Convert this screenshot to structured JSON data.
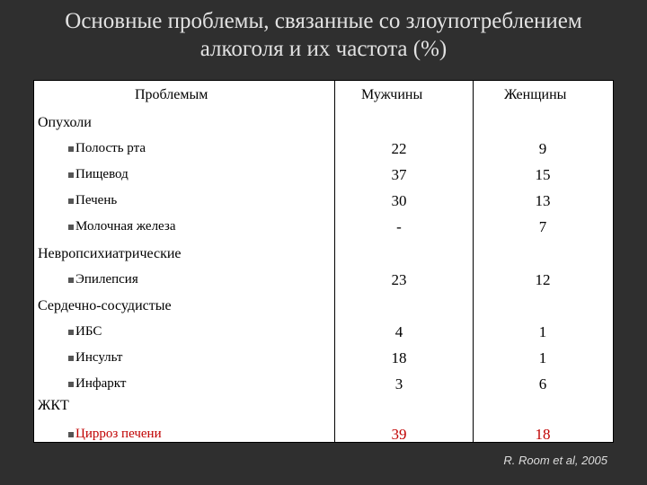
{
  "title": {
    "line1": "Основные проблемы, связанные со злоупотреблением",
    "line2": "алкоголя и их частота (%)"
  },
  "table": {
    "headers": {
      "problems": "Проблемым",
      "men": "Мужчины",
      "women": "Женщины"
    },
    "categories": [
      {
        "label": "Опухоли",
        "rows": [
          {
            "name": "Полость рта",
            "men": "22",
            "women": "9"
          },
          {
            "name": "Пищевод",
            "men": "37",
            "women": "15"
          },
          {
            "name": "Печень",
            "men": "30",
            "women": "13"
          },
          {
            "name": "Молочная железа",
            "men": "-",
            "women": "7"
          }
        ]
      },
      {
        "label": "Невропсихиатрические",
        "rows": [
          {
            "name": "Эпилепсия",
            "men": "23",
            "women": "12"
          }
        ]
      },
      {
        "label": "Сердечно-сосудистые",
        "rows": [
          {
            "name": "ИБС",
            "men": "4",
            "women": "1"
          },
          {
            "name": "Инсульт",
            "men": "18",
            "women": "1"
          },
          {
            "name": "Инфаркт",
            "men": "3",
            "women": "6"
          }
        ]
      },
      {
        "label": "ЖКТ",
        "rows": [
          {
            "name": "Цирроз печени",
            "men": "39",
            "women": "18"
          }
        ]
      }
    ]
  },
  "colors": {
    "background": "#2f2f2f",
    "title_text": "#e2e2e2",
    "highlight_row": "#c00000"
  },
  "source": "R. Room et al, 2005"
}
